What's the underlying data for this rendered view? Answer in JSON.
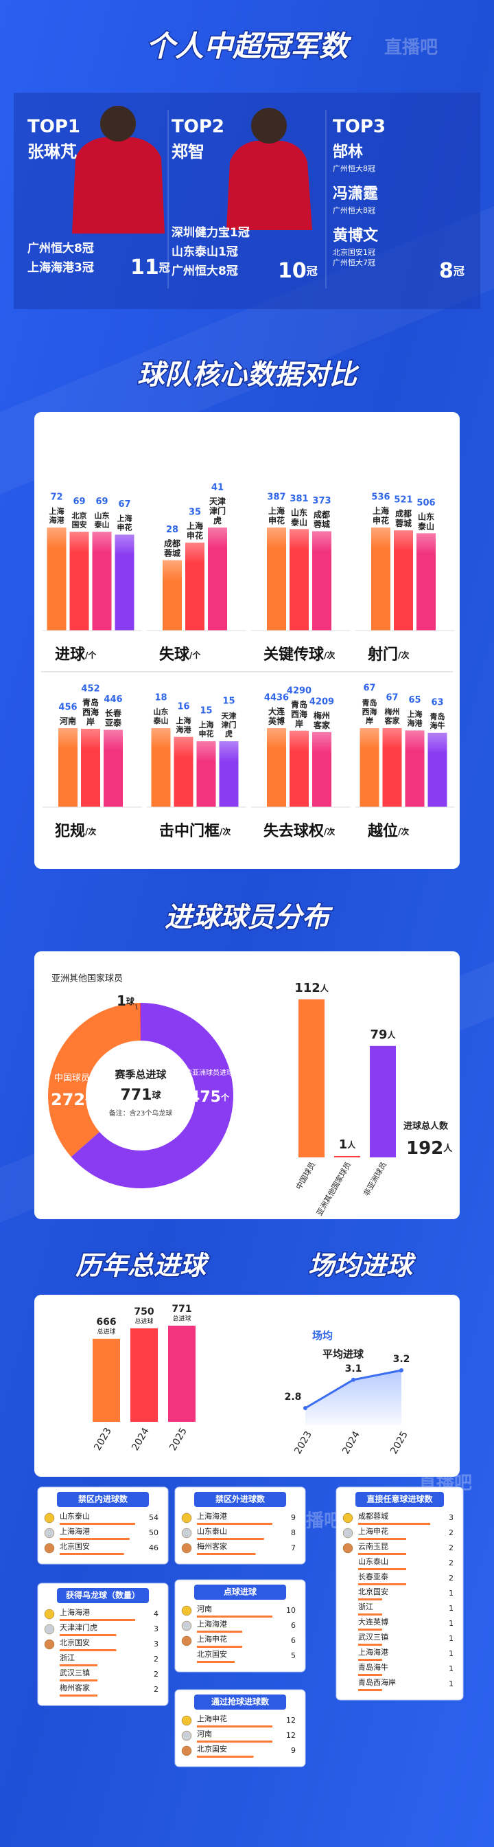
{
  "header": {
    "title": "个人中超冠军数",
    "watermark": "直播吧"
  },
  "top_players": [
    {
      "rank": "TOP1",
      "name": "张琳芃",
      "titles": [
        "广州恒大8冠",
        "上海海港3冠"
      ],
      "total": 11,
      "unit": "冠"
    },
    {
      "rank": "TOP2",
      "name": "郑智",
      "titles": [
        "深圳健力宝1冠",
        "山东泰山1冠",
        "广州恒大8冠"
      ],
      "total": 10,
      "unit": "冠"
    },
    {
      "rank": "TOP3",
      "players": [
        {
          "name": "郜林",
          "titles": [
            "广州恒大8冠"
          ]
        },
        {
          "name": "冯潇霆",
          "titles": [
            "广州恒大8冠"
          ]
        },
        {
          "name": "黄博文",
          "titles": [
            "北京国安1冠",
            "广州恒大7冠"
          ]
        }
      ],
      "total": 8,
      "unit": "冠"
    }
  ],
  "team_compare": {
    "title": "球队核心数据对比",
    "bar_colors": [
      "#ff7a32",
      "#ff3d45",
      "#f2337e",
      "#8a3cf2"
    ],
    "groups": [
      {
        "metric": "进球",
        "unit": "/个",
        "teams": [
          "上海海港",
          "北京国安",
          "山东泰山",
          "上海申花"
        ],
        "values": [
          72,
          69,
          69,
          67
        ]
      },
      {
        "metric": "失球",
        "unit": "/个",
        "teams": [
          "成都蓉城",
          "上海申花",
          "天津津门虎"
        ],
        "values": [
          28,
          35,
          41
        ]
      },
      {
        "metric": "关键传球",
        "unit": "/次",
        "teams": [
          "上海申花",
          "山东泰山",
          "成都蓉城"
        ],
        "values": [
          387,
          381,
          373
        ]
      },
      {
        "metric": "射门",
        "unit": "/次",
        "teams": [
          "上海申花",
          "成都蓉城",
          "山东泰山"
        ],
        "values": [
          536,
          521,
          506
        ]
      },
      {
        "metric": "犯规",
        "unit": "/次",
        "teams": [
          "河南",
          "青岛西海岸",
          "长春亚泰"
        ],
        "values": [
          456,
          452,
          446
        ]
      },
      {
        "metric": "击中门框",
        "unit": "/次",
        "teams": [
          "山东泰山",
          "上海海港",
          "上海申花",
          "天津津门虎"
        ],
        "values": [
          18,
          16,
          15,
          15
        ]
      },
      {
        "metric": "失去球权",
        "unit": "/次",
        "teams": [
          "大连英博",
          "青岛西海岸",
          "梅州客家"
        ],
        "values": [
          4436,
          4290,
          4209
        ]
      },
      {
        "metric": "越位",
        "unit": "/次",
        "teams": [
          "青岛西海岸",
          "梅州客家",
          "上海海港",
          "青岛海牛"
        ],
        "values": [
          67,
          67,
          65,
          63
        ]
      }
    ]
  },
  "goal_distribution": {
    "title": "进球球员分布",
    "donut": {
      "center_title": "赛季总进球",
      "total": 771,
      "total_unit": "球",
      "note": "备注：含23个乌龙球",
      "segments": [
        {
          "name": "中国球员",
          "value": 272,
          "unit": "个",
          "color": "#ff7a32"
        },
        {
          "name": "非亚洲球员进球",
          "value": 475,
          "unit": "个",
          "color": "#8a3cf2"
        },
        {
          "name": "亚洲其他国家球员",
          "value": 1,
          "unit": "球",
          "color": "#ff3d45"
        }
      ]
    },
    "players": {
      "categories": [
        "中国球员",
        "亚洲其他国家球员",
        "非亚洲球员"
      ],
      "values": [
        112,
        1,
        79
      ],
      "unit": "人",
      "colors": [
        "#ff7a32",
        "#ff3d45",
        "#8a3cf2"
      ],
      "total_label": "进球总人数",
      "total": 192,
      "total_unit": "人"
    }
  },
  "yearly_goals": {
    "title": "历年总进球",
    "years": [
      "2023",
      "2024",
      "2025"
    ],
    "values": [
      666,
      750,
      771
    ],
    "value_note": "总进球",
    "colors": [
      "#ff7a32",
      "#ff3d45",
      "#f2337e"
    ]
  },
  "per_match": {
    "title": "场均进球",
    "label_top": "场均",
    "label": "平均进球",
    "years": [
      "2023",
      "2024",
      "2025"
    ],
    "values": [
      2.8,
      3.1,
      3.2
    ],
    "color": "#3a6df0"
  },
  "rankings": [
    {
      "title": "禁区内进球数",
      "teams": [
        "山东泰山",
        "上海海港",
        "北京国安"
      ],
      "values": [
        54,
        50,
        46
      ]
    },
    {
      "title": "禁区外进球数",
      "teams": [
        "上海海港",
        "山东泰山",
        "梅州客家"
      ],
      "values": [
        9,
        8,
        7
      ]
    },
    {
      "title": "直接任意球进球数",
      "teams": [
        "成都蓉城",
        "上海申花",
        "云南玉昆",
        "山东泰山",
        "长春亚泰",
        "北京国安",
        "浙江",
        "大连英博",
        "武汉三镇",
        "上海海港",
        "青岛海牛",
        "青岛西海岸"
      ],
      "values": [
        3,
        2,
        2,
        2,
        2,
        1,
        1,
        1,
        1,
        1,
        1,
        1
      ]
    },
    {
      "title": "获得乌龙球（数量）",
      "teams": [
        "上海海港",
        "天津津门虎",
        "北京国安",
        "浙江",
        "武汉三镇",
        "梅州客家"
      ],
      "values": [
        4,
        3,
        3,
        2,
        2,
        2
      ]
    },
    {
      "title": "点球进球",
      "teams": [
        "河南",
        "上海海港",
        "上海申花",
        "北京国安"
      ],
      "values": [
        10,
        6,
        6,
        5
      ]
    },
    {
      "title": "通过抢球进球数",
      "teams": [
        "上海申花",
        "河南",
        "北京国安"
      ],
      "values": [
        12,
        12,
        9
      ]
    }
  ]
}
